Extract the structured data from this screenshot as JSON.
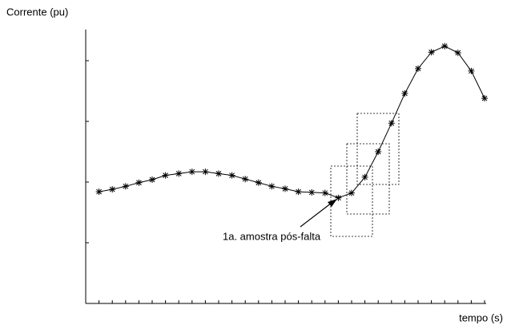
{
  "chart_data": {
    "type": "line",
    "y_label": "Corrente (pu)",
    "x_label": "tempo (s)",
    "annotation": "1a. amostra pós-falta",
    "x": [
      1,
      2,
      3,
      4,
      5,
      6,
      7,
      8,
      9,
      10,
      11,
      12,
      13,
      14,
      15,
      16,
      17,
      18,
      19,
      20,
      21,
      22,
      23,
      24,
      25,
      26,
      27,
      28,
      29,
      30
    ],
    "series": [
      {
        "color": "#000000",
        "values": [
          1.84,
          1.88,
          1.93,
          1.99,
          2.04,
          2.11,
          2.14,
          2.17,
          2.17,
          2.14,
          2.11,
          2.05,
          1.99,
          1.93,
          1.89,
          1.84,
          1.83,
          1.82,
          1.74,
          1.82,
          2.08,
          2.5,
          2.97,
          3.46,
          3.87,
          4.14,
          4.24,
          4.13,
          3.83,
          3.38
        ]
      }
    ],
    "xlim": [
      0,
      30
    ],
    "ylim": [
      0,
      4.5
    ],
    "xticks": [
      1,
      2,
      3,
      4,
      5,
      6,
      7,
      8,
      9,
      10,
      11,
      12,
      13,
      14,
      15,
      16,
      17,
      18,
      19,
      20,
      21,
      22,
      23,
      24,
      25,
      26,
      27,
      28,
      29,
      30
    ],
    "yticks": [
      1,
      2,
      3,
      4
    ]
  }
}
